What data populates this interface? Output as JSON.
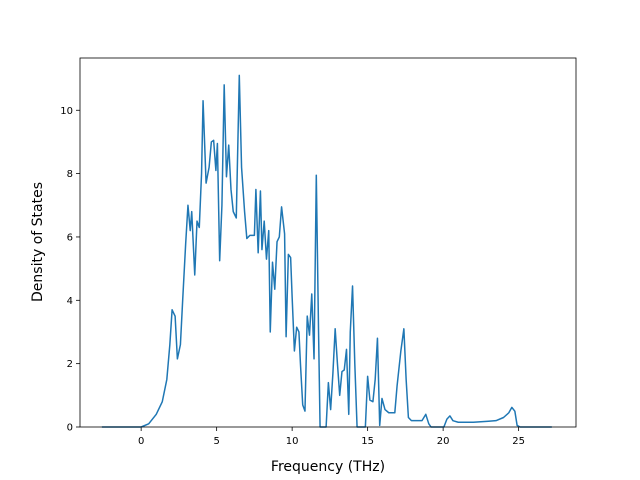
{
  "chart_data": {
    "type": "line",
    "xlabel": "Frequency (THz)",
    "ylabel": "Density of States",
    "color": "#1f77b4",
    "x": [
      -2.6,
      0,
      0.5,
      1.0,
      1.4,
      1.7,
      1.9,
      2.05,
      2.25,
      2.4,
      2.6,
      2.75,
      2.95,
      3.1,
      3.25,
      3.35,
      3.55,
      3.7,
      3.85,
      4.0,
      4.1,
      4.3,
      4.5,
      4.65,
      4.8,
      4.95,
      5.05,
      5.2,
      5.35,
      5.5,
      5.65,
      5.8,
      5.95,
      6.1,
      6.3,
      6.5,
      6.65,
      6.85,
      7.0,
      7.2,
      7.5,
      7.6,
      7.75,
      7.9,
      8.0,
      8.15,
      8.3,
      8.45,
      8.55,
      8.7,
      8.85,
      9.0,
      9.15,
      9.3,
      9.5,
      9.6,
      9.75,
      9.9,
      10.0,
      10.15,
      10.3,
      10.45,
      10.55,
      10.7,
      10.85,
      11.0,
      11.15,
      11.3,
      11.45,
      11.6,
      11.75,
      11.85,
      12.25,
      12.4,
      12.55,
      12.7,
      12.85,
      13.0,
      13.15,
      13.3,
      13.45,
      13.6,
      13.75,
      13.85,
      14.0,
      14.15,
      14.3,
      14.85,
      15.0,
      15.15,
      15.35,
      15.5,
      15.65,
      15.8,
      15.95,
      16.15,
      16.4,
      16.8,
      16.95,
      17.2,
      17.4,
      17.55,
      17.7,
      17.9,
      18.3,
      18.6,
      18.85,
      19.05,
      19.2,
      20.05,
      20.25,
      20.45,
      20.65,
      21.0,
      22.0,
      23.0,
      23.5,
      24.0,
      24.35,
      24.55,
      24.75,
      24.9,
      25.1,
      27.2
    ],
    "values": [
      0,
      0,
      0.1,
      0.4,
      0.8,
      1.5,
      2.6,
      3.7,
      3.5,
      2.15,
      2.6,
      4.0,
      5.8,
      7.0,
      6.2,
      6.8,
      4.8,
      6.5,
      6.3,
      8.0,
      10.3,
      7.7,
      8.2,
      9.0,
      9.05,
      8.1,
      8.95,
      5.25,
      7.0,
      10.8,
      7.9,
      8.9,
      7.5,
      6.8,
      6.6,
      11.1,
      8.2,
      6.8,
      5.95,
      6.05,
      6.05,
      7.5,
      5.5,
      7.45,
      5.6,
      6.5,
      5.3,
      6.2,
      3.0,
      5.2,
      4.35,
      5.85,
      6.0,
      6.95,
      6.1,
      2.85,
      5.45,
      5.35,
      4.1,
      2.4,
      3.15,
      3.0,
      2.0,
      0.7,
      0.5,
      3.5,
      2.9,
      4.2,
      2.15,
      7.95,
      3.0,
      0,
      0,
      1.4,
      0.55,
      1.7,
      3.1,
      2.0,
      1.0,
      1.75,
      1.8,
      2.45,
      0.4,
      3.0,
      4.45,
      2.0,
      0,
      0,
      1.6,
      0.85,
      0.8,
      1.5,
      2.8,
      0.05,
      0.9,
      0.55,
      0.45,
      0.45,
      1.3,
      2.4,
      3.1,
      1.5,
      0.3,
      0.2,
      0.2,
      0.2,
      0.4,
      0.1,
      0,
      0,
      0.25,
      0.35,
      0.2,
      0.15,
      0.15,
      0.18,
      0.2,
      0.3,
      0.45,
      0.62,
      0.5,
      0.05,
      0,
      0
    ],
    "xlim": [
      -4.05,
      28.8
    ],
    "xticks": [
      0,
      5,
      10,
      15,
      20,
      25
    ],
    "ylim": [
      0,
      11.65
    ],
    "yticks": [
      0,
      2,
      4,
      6,
      8,
      10
    ]
  }
}
